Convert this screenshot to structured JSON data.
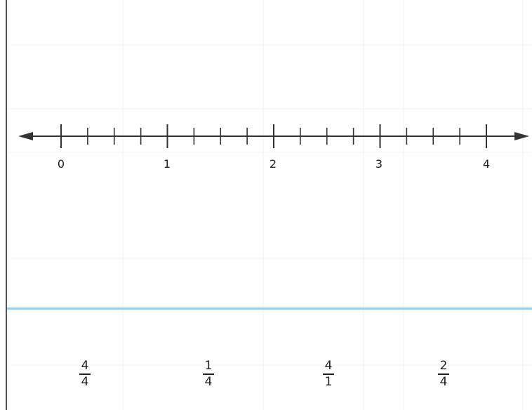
{
  "number_line": {
    "min": 0,
    "max": 4,
    "minor_step": 0.25,
    "labels": [
      "0",
      "1",
      "2",
      "3",
      "4"
    ],
    "arrows": "both-ends"
  },
  "cards": [
    {
      "numerator": "4",
      "denominator": "4"
    },
    {
      "numerator": "1",
      "denominator": "4"
    },
    {
      "numerator": "4",
      "denominator": "1"
    },
    {
      "numerator": "2",
      "denominator": "4"
    }
  ],
  "colors": {
    "line": "#333333",
    "divider": "#8fd3ee",
    "grid": "#f2f2f2",
    "text": "#222222"
  },
  "grid": true
}
